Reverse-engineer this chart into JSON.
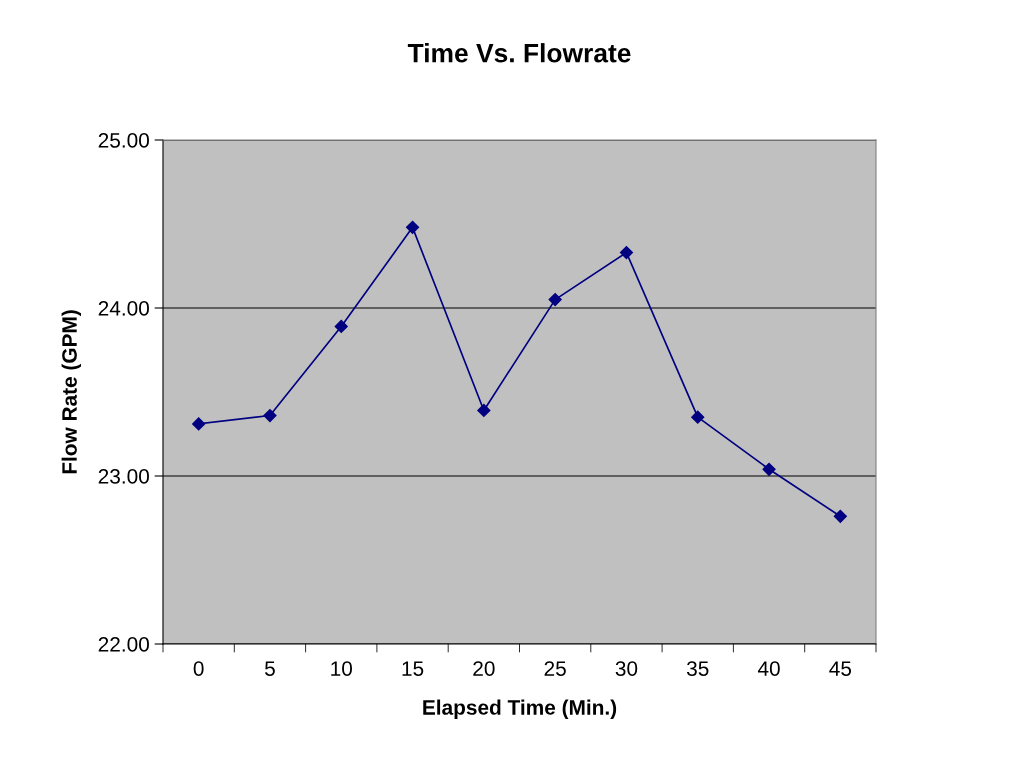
{
  "chart_data": {
    "type": "line",
    "title": "Time Vs. Flowrate",
    "xlabel": "Elapsed Time (Min.)",
    "ylabel": "Flow Rate (GPM)",
    "categories": [
      "0",
      "5",
      "10",
      "15",
      "20",
      "25",
      "30",
      "35",
      "40",
      "45"
    ],
    "series": [
      {
        "color": "#000080",
        "values": [
          23.31,
          23.36,
          23.89,
          24.48,
          23.39,
          24.05,
          24.33,
          23.35,
          23.04,
          22.76
        ]
      }
    ],
    "ylim": [
      22,
      25
    ],
    "yticks": [
      {
        "value": 22,
        "label": "22.00"
      },
      {
        "value": 23,
        "label": "23.00"
      },
      {
        "value": 24,
        "label": "24.00"
      },
      {
        "value": 25,
        "label": "25.00"
      }
    ],
    "grid": "y",
    "marker": "diamond",
    "line_style": "solid"
  }
}
